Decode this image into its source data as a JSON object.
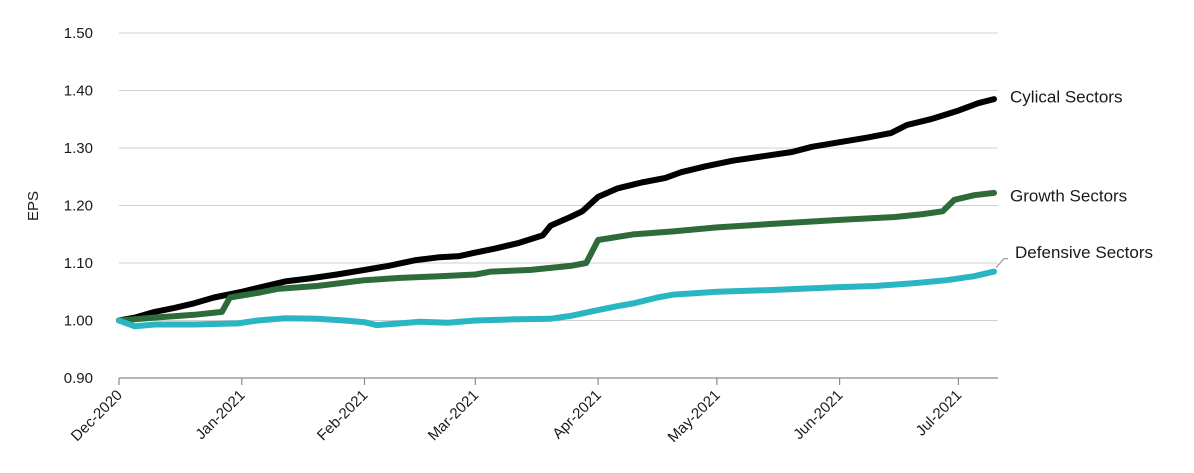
{
  "chart_data": {
    "type": "line",
    "title": "",
    "xlabel": "",
    "ylabel": "EPS",
    "ylim": [
      0.9,
      1.5
    ],
    "yticks": [
      "0.90",
      "1.00",
      "1.10",
      "1.20",
      "1.30",
      "1.40",
      "1.50"
    ],
    "y_tick_values": [
      0.9,
      1.0,
      1.1,
      1.2,
      1.3,
      1.4,
      1.5
    ],
    "xticks": [
      "Dec-2020",
      "Jan-2021",
      "Feb-2021",
      "Mar-2021",
      "Apr-2021",
      "May-2021",
      "Jun-2021",
      "Jul-2021"
    ],
    "x_tick_dates": [
      "2020-12-01",
      "2021-01-01",
      "2021-02-01",
      "2021-03-01",
      "2021-04-01",
      "2021-05-01",
      "2021-06-01",
      "2021-07-01"
    ],
    "xlim": [
      "2020-12-01",
      "2021-07-11"
    ],
    "grid": "horizontal",
    "legend": "inline labels at right end of lines",
    "series": [
      {
        "name": "Cylical Sectors",
        "color": "#000000",
        "points": [
          [
            "2020-12-01",
            1.0
          ],
          [
            "2020-12-05",
            1.005
          ],
          [
            "2020-12-10",
            1.015
          ],
          [
            "2020-12-15",
            1.022
          ],
          [
            "2020-12-20",
            1.03
          ],
          [
            "2020-12-25",
            1.04
          ],
          [
            "2021-01-01",
            1.05
          ],
          [
            "2021-01-06",
            1.058
          ],
          [
            "2021-01-12",
            1.068
          ],
          [
            "2021-01-18",
            1.073
          ],
          [
            "2021-01-25",
            1.08
          ],
          [
            "2021-02-01",
            1.088
          ],
          [
            "2021-02-07",
            1.095
          ],
          [
            "2021-02-14",
            1.105
          ],
          [
            "2021-02-20",
            1.11
          ],
          [
            "2021-02-25",
            1.112
          ],
          [
            "2021-03-01",
            1.118
          ],
          [
            "2021-03-06",
            1.125
          ],
          [
            "2021-03-12",
            1.135
          ],
          [
            "2021-03-18",
            1.148
          ],
          [
            "2021-03-20",
            1.165
          ],
          [
            "2021-03-25",
            1.18
          ],
          [
            "2021-03-28",
            1.19
          ],
          [
            "2021-04-01",
            1.215
          ],
          [
            "2021-04-06",
            1.23
          ],
          [
            "2021-04-12",
            1.24
          ],
          [
            "2021-04-18",
            1.248
          ],
          [
            "2021-04-22",
            1.258
          ],
          [
            "2021-04-28",
            1.268
          ],
          [
            "2021-05-05",
            1.278
          ],
          [
            "2021-05-12",
            1.285
          ],
          [
            "2021-05-20",
            1.293
          ],
          [
            "2021-05-25",
            1.302
          ],
          [
            "2021-06-01",
            1.31
          ],
          [
            "2021-06-08",
            1.318
          ],
          [
            "2021-06-14",
            1.326
          ],
          [
            "2021-06-18",
            1.34
          ],
          [
            "2021-06-24",
            1.35
          ],
          [
            "2021-07-01",
            1.365
          ],
          [
            "2021-07-06",
            1.378
          ],
          [
            "2021-07-10",
            1.385
          ]
        ]
      },
      {
        "name": "Growth Sectors",
        "color": "#2e6b3a",
        "points": [
          [
            "2020-12-01",
            1.0
          ],
          [
            "2020-12-10",
            1.005
          ],
          [
            "2020-12-20",
            1.01
          ],
          [
            "2020-12-27",
            1.015
          ],
          [
            "2020-12-29",
            1.04
          ],
          [
            "2021-01-05",
            1.048
          ],
          [
            "2021-01-10",
            1.055
          ],
          [
            "2021-01-20",
            1.06
          ],
          [
            "2021-02-01",
            1.07
          ],
          [
            "2021-02-10",
            1.074
          ],
          [
            "2021-02-20",
            1.077
          ],
          [
            "2021-03-01",
            1.08
          ],
          [
            "2021-03-05",
            1.085
          ],
          [
            "2021-03-15",
            1.088
          ],
          [
            "2021-03-25",
            1.095
          ],
          [
            "2021-03-29",
            1.1
          ],
          [
            "2021-04-01",
            1.14
          ],
          [
            "2021-04-10",
            1.15
          ],
          [
            "2021-04-20",
            1.155
          ],
          [
            "2021-05-01",
            1.162
          ],
          [
            "2021-05-15",
            1.168
          ],
          [
            "2021-06-01",
            1.175
          ],
          [
            "2021-06-15",
            1.18
          ],
          [
            "2021-06-22",
            1.185
          ],
          [
            "2021-06-27",
            1.19
          ],
          [
            "2021-06-30",
            1.21
          ],
          [
            "2021-07-05",
            1.218
          ],
          [
            "2021-07-10",
            1.222
          ]
        ]
      },
      {
        "name": "Defensive Sectors",
        "color": "#2ab5c2",
        "points": [
          [
            "2020-12-01",
            1.0
          ],
          [
            "2020-12-03",
            0.995
          ],
          [
            "2020-12-05",
            0.99
          ],
          [
            "2020-12-10",
            0.993
          ],
          [
            "2020-12-20",
            0.993
          ],
          [
            "2020-12-31",
            0.995
          ],
          [
            "2021-01-05",
            1.0
          ],
          [
            "2021-01-12",
            1.004
          ],
          [
            "2021-01-20",
            1.003
          ],
          [
            "2021-01-27",
            1.0
          ],
          [
            "2021-02-01",
            0.997
          ],
          [
            "2021-02-04",
            0.992
          ],
          [
            "2021-02-10",
            0.995
          ],
          [
            "2021-02-15",
            0.998
          ],
          [
            "2021-02-22",
            0.996
          ],
          [
            "2021-03-01",
            1.0
          ],
          [
            "2021-03-10",
            1.002
          ],
          [
            "2021-03-20",
            1.003
          ],
          [
            "2021-03-25",
            1.008
          ],
          [
            "2021-04-01",
            1.018
          ],
          [
            "2021-04-06",
            1.025
          ],
          [
            "2021-04-10",
            1.03
          ],
          [
            "2021-04-16",
            1.04
          ],
          [
            "2021-04-20",
            1.045
          ],
          [
            "2021-05-01",
            1.05
          ],
          [
            "2021-05-15",
            1.053
          ],
          [
            "2021-06-01",
            1.058
          ],
          [
            "2021-06-10",
            1.06
          ],
          [
            "2021-06-20",
            1.065
          ],
          [
            "2021-06-28",
            1.07
          ],
          [
            "2021-07-05",
            1.077
          ],
          [
            "2021-07-10",
            1.085
          ]
        ]
      }
    ]
  }
}
